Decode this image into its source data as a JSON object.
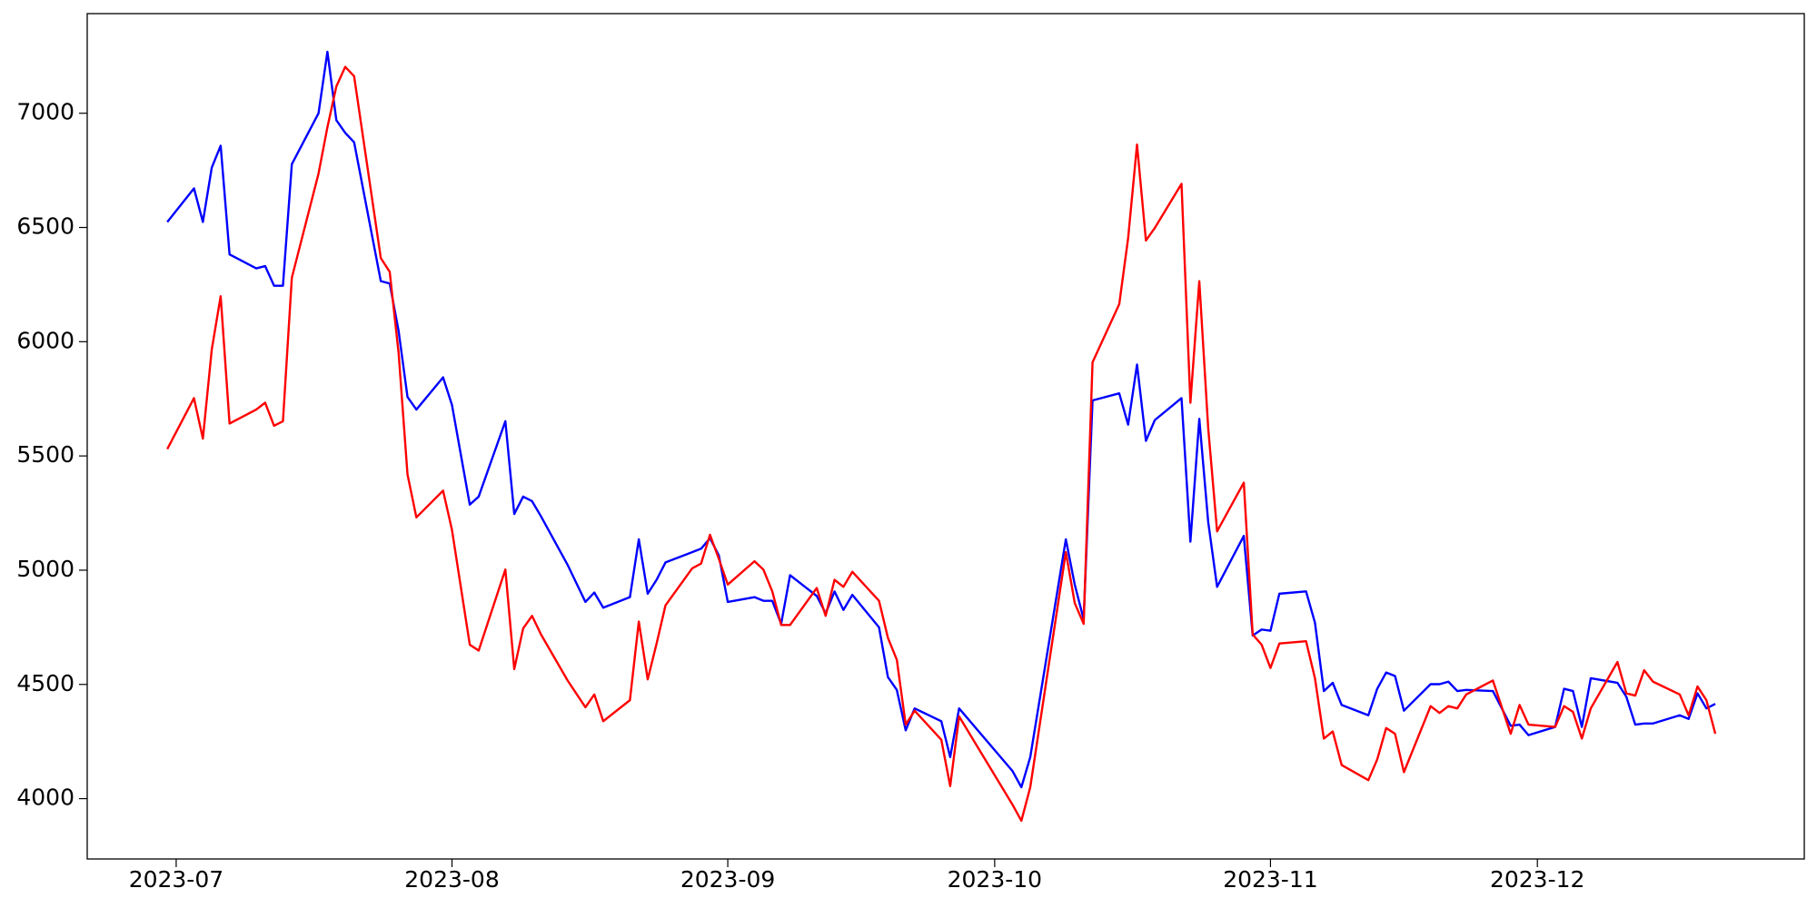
{
  "chart_data": {
    "type": "line",
    "x": [
      "2023-06-30",
      "2023-07-03",
      "2023-07-04",
      "2023-07-05",
      "2023-07-06",
      "2023-07-07",
      "2023-07-10",
      "2023-07-11",
      "2023-07-12",
      "2023-07-13",
      "2023-07-14",
      "2023-07-17",
      "2023-07-18",
      "2023-07-19",
      "2023-07-20",
      "2023-07-21",
      "2023-07-24",
      "2023-07-25",
      "2023-07-26",
      "2023-07-27",
      "2023-07-28",
      "2023-07-31",
      "2023-08-01",
      "2023-08-03",
      "2023-08-04",
      "2023-08-07",
      "2023-08-08",
      "2023-08-09",
      "2023-08-10",
      "2023-08-11",
      "2023-08-14",
      "2023-08-16",
      "2023-08-17",
      "2023-08-18",
      "2023-08-21",
      "2023-08-22",
      "2023-08-23",
      "2023-08-24",
      "2023-08-25",
      "2023-08-28",
      "2023-08-29",
      "2023-08-30",
      "2023-08-31",
      "2023-09-01",
      "2023-09-04",
      "2023-09-05",
      "2023-09-06",
      "2023-09-07",
      "2023-09-08",
      "2023-09-11",
      "2023-09-12",
      "2023-09-13",
      "2023-09-14",
      "2023-09-15",
      "2023-09-18",
      "2023-09-19",
      "2023-09-20",
      "2023-09-21",
      "2023-09-22",
      "2023-09-25",
      "2023-09-26",
      "2023-09-27",
      "2023-10-03",
      "2023-10-04",
      "2023-10-05",
      "2023-10-09",
      "2023-10-10",
      "2023-10-11",
      "2023-10-12",
      "2023-10-15",
      "2023-10-16",
      "2023-10-17",
      "2023-10-18",
      "2023-10-19",
      "2023-10-22",
      "2023-10-23",
      "2023-10-24",
      "2023-10-25",
      "2023-10-26",
      "2023-10-29",
      "2023-10-30",
      "2023-10-31",
      "2023-11-01",
      "2023-11-02",
      "2023-11-05",
      "2023-11-06",
      "2023-11-07",
      "2023-11-08",
      "2023-11-09",
      "2023-11-12",
      "2023-11-13",
      "2023-11-14",
      "2023-11-15",
      "2023-11-16",
      "2023-11-19",
      "2023-11-20",
      "2023-11-21",
      "2023-11-22",
      "2023-11-23",
      "2023-11-26",
      "2023-11-28",
      "2023-11-29",
      "2023-11-30",
      "2023-12-03",
      "2023-12-04",
      "2023-12-05",
      "2023-12-06",
      "2023-12-07",
      "2023-12-10",
      "2023-12-11",
      "2023-12-12",
      "2023-12-13",
      "2023-12-14",
      "2023-12-17",
      "2023-12-18",
      "2023-12-19",
      "2023-12-20",
      "2023-12-21"
    ],
    "series": [
      {
        "color": "blue",
        "values": [
          6524,
          6671,
          6524,
          6762,
          6858,
          6382,
          6321,
          6331,
          6245,
          6245,
          6777,
          7000,
          7269,
          6970,
          6914,
          6873,
          6265,
          6255,
          6047,
          5758,
          5703,
          5844,
          5723,
          5287,
          5322,
          5652,
          5246,
          5322,
          5302,
          5236,
          5023,
          4861,
          4902,
          4836,
          4882,
          5135,
          4897,
          4958,
          5034,
          5079,
          5094,
          5140,
          5064,
          4861,
          4882,
          4866,
          4866,
          4765,
          4978,
          4887,
          4811,
          4907,
          4826,
          4892,
          4750,
          4532,
          4476,
          4299,
          4395,
          4339,
          4182,
          4395,
          4121,
          4050,
          4182,
          5135,
          4937,
          4785,
          5743,
          5774,
          5637,
          5900,
          5566,
          5657,
          5753,
          5125,
          5662,
          5211,
          4927,
          5150,
          4714,
          4740,
          4735,
          4897,
          4907,
          4770,
          4471,
          4507,
          4410,
          4365,
          4481,
          4552,
          4537,
          4385,
          4501,
          4501,
          4512,
          4471,
          4476,
          4471,
          4319,
          4324,
          4278,
          4314,
          4481,
          4471,
          4314,
          4527,
          4507,
          4446,
          4324,
          4329,
          4329,
          4365,
          4349,
          4461,
          4395,
          4415
        ]
      },
      {
        "color": "red",
        "values": [
          5530,
          5753,
          5576,
          5966,
          6199,
          5642,
          5703,
          5733,
          5632,
          5652,
          6280,
          6736,
          6939,
          7117,
          7203,
          7162,
          6366,
          6306,
          5951,
          5419,
          5231,
          5348,
          5176,
          4674,
          4648,
          5003,
          4567,
          4745,
          4800,
          4719,
          4517,
          4400,
          4456,
          4339,
          4431,
          4775,
          4522,
          4679,
          4846,
          5008,
          5029,
          5155,
          5049,
          4937,
          5039,
          5003,
          4907,
          4760,
          4760,
          4922,
          4800,
          4958,
          4927,
          4993,
          4866,
          4704,
          4608,
          4324,
          4385,
          4258,
          4055,
          4360,
          3974,
          3903,
          4050,
          5079,
          4856,
          4765,
          5910,
          6164,
          6453,
          6863,
          6443,
          6498,
          6691,
          5733,
          6265,
          5622,
          5170,
          5383,
          4719,
          4674,
          4572,
          4679,
          4689,
          4527,
          4263,
          4294,
          4147,
          4081,
          4172,
          4309,
          4284,
          4116,
          4405,
          4375,
          4405,
          4395,
          4456,
          4517,
          4284,
          4410,
          4324,
          4314,
          4405,
          4380,
          4263,
          4395,
          4598,
          4461,
          4451,
          4562,
          4512,
          4456,
          4365,
          4491,
          4431,
          4284
        ]
      }
    ],
    "xlim": [
      "2023-06-21",
      "2023-12-31"
    ],
    "xticks": [
      {
        "value": "2023-07-01",
        "label": "2023-07"
      },
      {
        "value": "2023-08-01",
        "label": "2023-08"
      },
      {
        "value": "2023-09-01",
        "label": "2023-09"
      },
      {
        "value": "2023-10-01",
        "label": "2023-10"
      },
      {
        "value": "2023-11-01",
        "label": "2023-11"
      },
      {
        "value": "2023-12-01",
        "label": "2023-12"
      }
    ],
    "ylim": [
      3736,
      7436
    ],
    "yticks": [
      4000,
      4500,
      5000,
      5500,
      6000,
      6500,
      7000
    ],
    "grid": false
  }
}
